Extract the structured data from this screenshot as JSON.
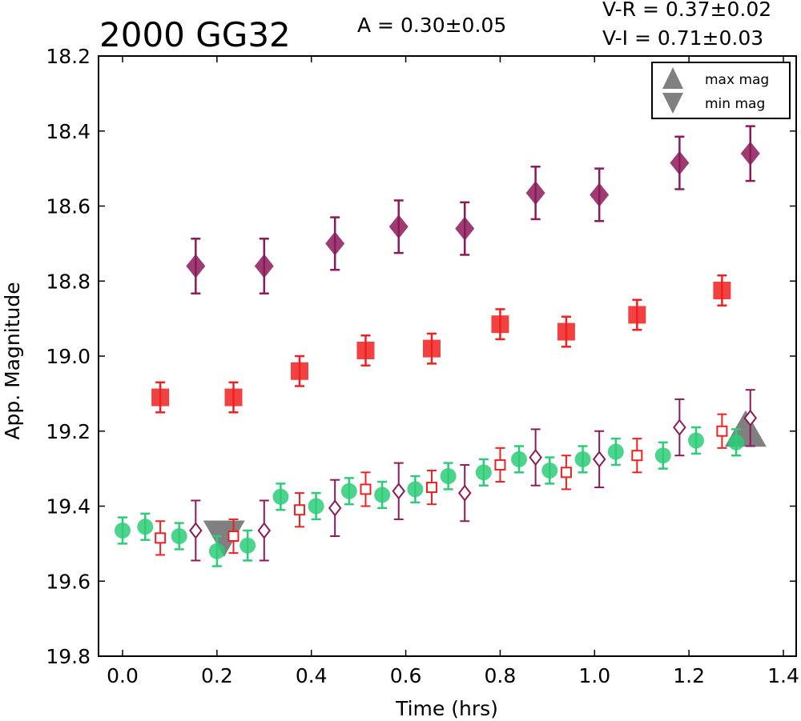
{
  "chart_data": {
    "type": "scatter",
    "title": "2000 GG32",
    "amplitude_text": "A  = 0.30±0.05",
    "colors_text": [
      "V-R = 0.37±0.02",
      "V-I  = 0.71±0.03"
    ],
    "xlabel": "Time (hrs)",
    "ylabel": "App. Magnitude",
    "xlim": [
      -0.05,
      1.42
    ],
    "ylim": [
      19.8,
      18.2
    ],
    "y_inverted": true,
    "grid": false,
    "xticks": [
      0.0,
      0.2,
      0.4,
      0.6,
      0.8,
      1.0,
      1.2,
      1.4
    ],
    "xtick_labels": [
      "0.0",
      "0.2",
      "0.4",
      "0.6",
      "0.8",
      "1.0",
      "1.2",
      "1.4"
    ],
    "yticks": [
      18.2,
      18.4,
      18.6,
      18.8,
      19.0,
      19.2,
      19.4,
      19.6,
      19.8
    ],
    "ytick_labels": [
      "18.2",
      "18.4",
      "18.6",
      "18.8",
      "19.0",
      "19.2",
      "19.4",
      "19.6",
      "19.8"
    ],
    "legend": {
      "placement": "top-right",
      "entries": [
        {
          "label": "max mag",
          "marker": "triangle-up",
          "color": "#808080"
        },
        {
          "label": "min mag",
          "marker": "triangle-down",
          "color": "#808080"
        }
      ]
    },
    "series": [
      {
        "marker": "diamond",
        "filled": true,
        "color": "#8b1a5a",
        "x": [
          0.155,
          0.3,
          0.45,
          0.585,
          0.725,
          0.875,
          1.01,
          1.18,
          1.33
        ],
        "y": [
          18.76,
          18.76,
          18.7,
          18.655,
          18.66,
          18.565,
          18.57,
          18.485,
          18.46
        ],
        "err": [
          0.073,
          0.073,
          0.07,
          0.07,
          0.07,
          0.07,
          0.07,
          0.07,
          0.073
        ]
      },
      {
        "marker": "square",
        "filled": true,
        "color": "#f02020",
        "x": [
          0.08,
          0.235,
          0.375,
          0.515,
          0.655,
          0.8,
          0.94,
          1.09,
          1.27
        ],
        "y": [
          19.11,
          19.11,
          19.04,
          18.985,
          18.98,
          18.915,
          18.935,
          18.89,
          18.825
        ],
        "err": [
          0.04,
          0.04,
          0.04,
          0.04,
          0.04,
          0.04,
          0.04,
          0.04,
          0.04
        ]
      },
      {
        "marker": "circle",
        "filled": true,
        "color": "#2ecc78",
        "x": [
          0.0,
          0.048,
          0.12,
          0.2,
          0.265,
          0.335,
          0.41,
          0.48,
          0.55,
          0.62,
          0.69,
          0.765,
          0.84,
          0.905,
          0.975,
          1.045,
          1.145,
          1.215,
          1.3
        ],
        "y": [
          19.465,
          19.455,
          19.48,
          19.52,
          19.505,
          19.375,
          19.4,
          19.36,
          19.37,
          19.355,
          19.32,
          19.31,
          19.275,
          19.305,
          19.275,
          19.255,
          19.265,
          19.225,
          19.23
        ],
        "err": [
          0.035,
          0.035,
          0.035,
          0.04,
          0.04,
          0.035,
          0.035,
          0.035,
          0.035,
          0.035,
          0.035,
          0.035,
          0.035,
          0.035,
          0.035,
          0.035,
          0.035,
          0.035,
          0.035
        ]
      },
      {
        "marker": "square",
        "filled": false,
        "color": "#f02020",
        "x": [
          0.08,
          0.235,
          0.375,
          0.515,
          0.655,
          0.8,
          0.94,
          1.09,
          1.27
        ],
        "y": [
          19.485,
          19.48,
          19.41,
          19.355,
          19.35,
          19.29,
          19.31,
          19.265,
          19.2
        ],
        "err": [
          0.045,
          0.045,
          0.045,
          0.045,
          0.045,
          0.045,
          0.045,
          0.045,
          0.045
        ]
      },
      {
        "marker": "diamond",
        "filled": false,
        "color": "#8b1a5a",
        "x": [
          0.155,
          0.3,
          0.45,
          0.585,
          0.725,
          0.875,
          1.01,
          1.18,
          1.33
        ],
        "y": [
          19.465,
          19.465,
          19.405,
          19.36,
          19.365,
          19.27,
          19.275,
          19.19,
          19.165
        ],
        "err": [
          0.08,
          0.08,
          0.075,
          0.075,
          0.075,
          0.075,
          0.075,
          0.075,
          0.075
        ]
      }
    ],
    "extrema": [
      {
        "kind": "min mag",
        "marker": "triangle-down",
        "color": "#808080",
        "x": 0.215,
        "y": 19.48
      },
      {
        "kind": "max mag",
        "marker": "triangle-up",
        "color": "#808080",
        "x": 1.32,
        "y": 19.2
      }
    ]
  }
}
